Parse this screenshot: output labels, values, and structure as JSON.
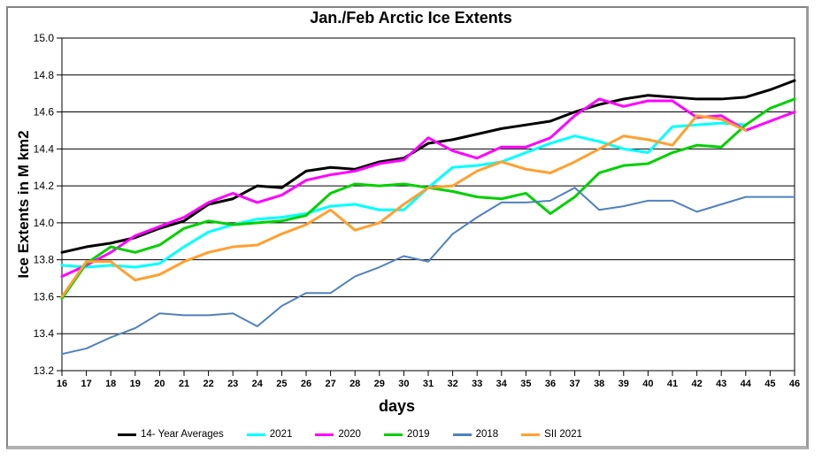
{
  "window": {
    "background": "#ffffff",
    "frame_color": "#848484"
  },
  "chart_data": {
    "type": "line",
    "title": "Jan./Feb Arctic Ice Extents",
    "xlabel": "days",
    "ylabel": "Ice Extents in M km2",
    "xlim": [
      16,
      46
    ],
    "ylim": [
      13.2,
      15.0
    ],
    "grid": "horizontal-black",
    "legend_position": "bottom",
    "x": [
      16,
      17,
      18,
      19,
      20,
      21,
      22,
      23,
      24,
      25,
      26,
      27,
      28,
      29,
      30,
      31,
      32,
      33,
      34,
      35,
      36,
      37,
      38,
      39,
      40,
      41,
      42,
      43,
      44,
      45,
      46
    ],
    "xticks": [
      "16",
      "17",
      "18",
      "19",
      "20",
      "21",
      "22",
      "23",
      "24",
      "25",
      "26",
      "27",
      "28",
      "29",
      "30",
      "31",
      "32",
      "33",
      "34",
      "35",
      "36",
      "37",
      "38",
      "39",
      "40",
      "41",
      "42",
      "43",
      "44",
      "45",
      "46"
    ],
    "yticks": [
      "13.2",
      "13.4",
      "13.6",
      "13.8",
      "14.0",
      "14.2",
      "14.4",
      "14.6",
      "14.8",
      "15.0"
    ],
    "series": [
      {
        "name": "14- Year Averages",
        "color": "#000000",
        "line_width": 3,
        "values": [
          13.84,
          13.87,
          13.89,
          13.92,
          13.97,
          14.01,
          14.1,
          14.13,
          14.2,
          14.19,
          14.28,
          14.3,
          14.29,
          14.33,
          14.35,
          14.43,
          14.45,
          14.48,
          14.51,
          14.53,
          14.55,
          14.6,
          14.64,
          14.67,
          14.69,
          14.68,
          14.67,
          14.67,
          14.68,
          14.72,
          14.77
        ]
      },
      {
        "name": "2021",
        "color": "#00ffff",
        "line_width": 3,
        "values": [
          13.77,
          13.76,
          13.77,
          13.76,
          13.78,
          13.87,
          13.95,
          13.99,
          14.02,
          14.03,
          14.05,
          14.09,
          14.1,
          14.07,
          14.07,
          14.19,
          14.3,
          14.31,
          14.33,
          14.38,
          14.43,
          14.47,
          14.44,
          14.4,
          14.38,
          14.52,
          14.53,
          14.54,
          14.53,
          null,
          null
        ]
      },
      {
        "name": "2020",
        "color": "#ff00ff",
        "line_width": 3,
        "values": [
          13.71,
          13.77,
          13.84,
          13.93,
          13.98,
          14.03,
          14.11,
          14.16,
          14.11,
          14.15,
          14.23,
          14.26,
          14.28,
          14.32,
          14.34,
          14.46,
          14.39,
          14.35,
          14.41,
          14.41,
          14.46,
          14.58,
          14.67,
          14.63,
          14.66,
          14.66,
          14.57,
          14.58,
          14.5,
          14.55,
          14.6
        ]
      },
      {
        "name": "2019",
        "color": "#00d000",
        "line_width": 3,
        "values": [
          13.59,
          13.78,
          13.87,
          13.84,
          13.88,
          13.97,
          14.01,
          13.99,
          14.0,
          14.01,
          14.04,
          14.16,
          14.21,
          14.2,
          14.21,
          14.19,
          14.17,
          14.14,
          14.13,
          14.16,
          14.05,
          14.14,
          14.27,
          14.31,
          14.32,
          14.38,
          14.42,
          14.41,
          14.53,
          14.62,
          14.67
        ]
      },
      {
        "name": "2018",
        "color": "#5081be",
        "line_width": 2,
        "values": [
          13.29,
          13.32,
          13.38,
          13.43,
          13.51,
          13.5,
          13.5,
          13.51,
          13.44,
          13.55,
          13.62,
          13.62,
          13.71,
          13.76,
          13.82,
          13.79,
          13.94,
          14.03,
          14.11,
          14.11,
          14.12,
          14.19,
          14.07,
          14.09,
          14.12,
          14.12,
          14.06,
          14.1,
          14.14,
          14.14,
          14.14
        ]
      },
      {
        "name": "SII 2021",
        "color": "#ffa030",
        "line_width": 3,
        "values": [
          13.6,
          13.79,
          13.79,
          13.69,
          13.72,
          13.79,
          13.84,
          13.87,
          13.88,
          13.94,
          13.99,
          14.07,
          13.96,
          14.0,
          14.1,
          14.19,
          14.2,
          14.28,
          14.33,
          14.29,
          14.27,
          14.33,
          14.4,
          14.47,
          14.45,
          14.42,
          14.58,
          14.56,
          14.5,
          null,
          null
        ]
      }
    ]
  }
}
